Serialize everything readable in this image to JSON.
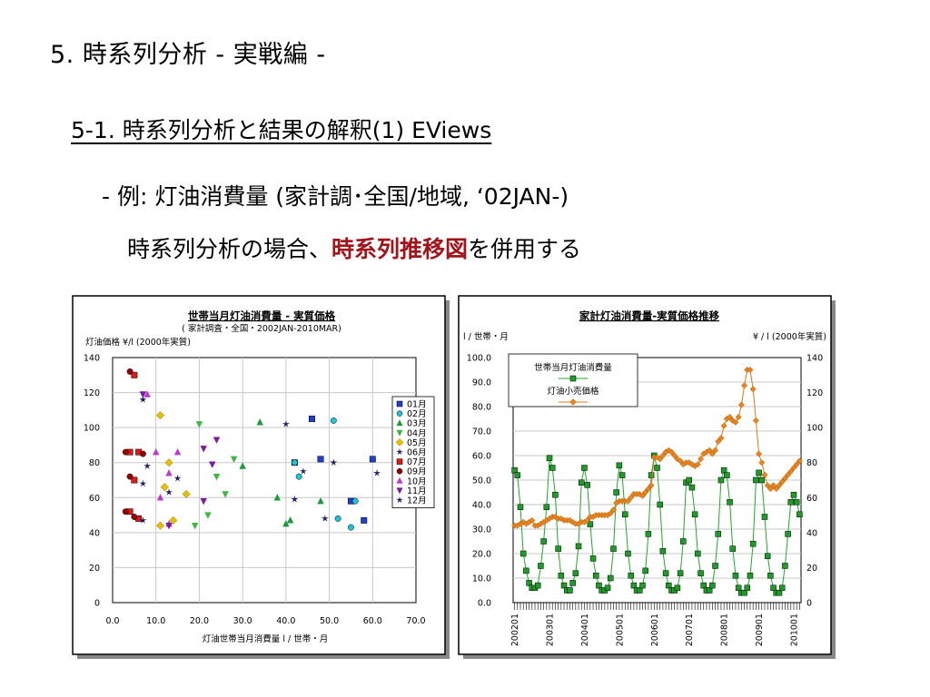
{
  "slide": {
    "title": "5. 時系列分析 - 実戦編 -",
    "subtitle": "5-1. 時系列分析と結果の解釈(1) EViews",
    "bullet1": "- 例: 灯油消費量 (家計調･全国/地域, ‘02JAN-)",
    "bullet2_prefix": "時系列分析の場合、",
    "bullet2_highlight": "時系列推移図",
    "bullet2_suffix": "を併用する"
  },
  "chart_data": [
    {
      "type": "scatter",
      "title": "世帯当月灯油消費量 - 実質価格",
      "subtitle": "( 家計調査・全国・2002JAN-2010MAR)",
      "ylabel": "灯油価格 ¥/l (2000年実質)",
      "xlabel": "灯油世帯当月消費量 l / 世帯・月",
      "xlim": [
        0,
        70
      ],
      "ylim": [
        0,
        140
      ],
      "xticks": [
        "0.0",
        "10.0",
        "20.0",
        "30.0",
        "40.0",
        "50.0",
        "60.0",
        "70.0"
      ],
      "yticks": [
        "0",
        "20",
        "40",
        "60",
        "80",
        "100",
        "120",
        "140"
      ],
      "grid": true,
      "legend_position": "right",
      "series": [
        {
          "name": "01月",
          "marker": "square",
          "color": "#1f3fd0",
          "points": [
            [
              46,
              105
            ],
            [
              55,
              58
            ],
            [
              42,
              80
            ],
            [
              48,
              82
            ],
            [
              58,
              47
            ],
            [
              60,
              82
            ]
          ]
        },
        {
          "name": "02月",
          "marker": "circle",
          "color": "#22c3d6",
          "points": [
            [
              51,
              104
            ],
            [
              56,
              58
            ],
            [
              43,
              72
            ],
            [
              52,
              48
            ],
            [
              42,
              80
            ],
            [
              55,
              43
            ]
          ]
        },
        {
          "name": "03月",
          "marker": "triangle",
          "color": "#1a9a3a",
          "points": [
            [
              34,
              103
            ],
            [
              40,
              45
            ],
            [
              30,
              78
            ],
            [
              48,
              58
            ],
            [
              38,
              60
            ],
            [
              41,
              47
            ]
          ]
        },
        {
          "name": "04月",
          "marker": "tri-down",
          "color": "#3ab83a",
          "points": [
            [
              20,
              102
            ],
            [
              28,
              82
            ],
            [
              24,
              72
            ],
            [
              22,
              50
            ],
            [
              26,
              62
            ],
            [
              19,
              44
            ]
          ]
        },
        {
          "name": "05月",
          "marker": "diamond",
          "color": "#e6c000",
          "points": [
            [
              11,
              107
            ],
            [
              13,
              80
            ],
            [
              12,
              66
            ],
            [
              14,
              47
            ],
            [
              17,
              62
            ],
            [
              11,
              44
            ]
          ]
        },
        {
          "name": "06月",
          "marker": "star",
          "color": "#222266",
          "points": [
            [
              40,
              102
            ],
            [
              44,
              75
            ],
            [
              42,
              59
            ],
            [
              49,
              48
            ],
            [
              51,
              80
            ],
            [
              61,
              74
            ]
          ]
        },
        {
          "name": "07月",
          "marker": "square",
          "color": "#e01818",
          "points": [
            [
              5,
              130
            ],
            [
              4,
              86
            ],
            [
              6,
              86
            ],
            [
              5,
              70
            ],
            [
              4,
              52
            ],
            [
              6,
              48
            ]
          ]
        },
        {
          "name": "09月",
          "marker": "circle",
          "color": "#990000",
          "points": [
            [
              4,
              132
            ],
            [
              3,
              86
            ],
            [
              7,
              85
            ],
            [
              4,
              72
            ],
            [
              3,
              52
            ],
            [
              5,
              49
            ]
          ]
        },
        {
          "name": "10月",
          "marker": "triangle",
          "color": "#b83ad0",
          "points": [
            [
              8,
              119
            ],
            [
              10,
              86
            ],
            [
              13,
              74
            ],
            [
              11,
              60
            ],
            [
              15,
              86
            ],
            [
              13,
              45
            ]
          ]
        },
        {
          "name": "11月",
          "marker": "tri-down",
          "color": "#7a1aa0",
          "points": [
            [
              7,
              119
            ],
            [
              21,
              88
            ],
            [
              24,
              93
            ],
            [
              21,
              58
            ],
            [
              23,
              79
            ],
            [
              13,
              44
            ]
          ]
        },
        {
          "name": "12月",
          "marker": "star",
          "color": "#1a2060",
          "points": [
            [
              7,
              116
            ],
            [
              8,
              78
            ],
            [
              7,
              68
            ],
            [
              13,
              63
            ],
            [
              7,
              47
            ],
            [
              15,
              71
            ]
          ]
        }
      ]
    },
    {
      "type": "line",
      "title": "家計灯油消費量-実質価格推移",
      "ylabel_left": "l / 世帯・月",
      "ylabel_right": "¥ / l (2000年実質)",
      "ylim_left": [
        0,
        100
      ],
      "ylim_right": [
        0,
        140
      ],
      "yticks_left": [
        "0.0",
        "10.0",
        "20.0",
        "30.0",
        "40.0",
        "50.0",
        "60.0",
        "70.0",
        "80.0",
        "90.0",
        "100.0"
      ],
      "yticks_right": [
        "0",
        "20",
        "40",
        "60",
        "80",
        "100",
        "120",
        "140"
      ],
      "x_tick_labels": [
        "200201",
        "200301",
        "200401",
        "200501",
        "200601",
        "200701",
        "200801",
        "200901",
        "201001"
      ],
      "grid": true,
      "legend_position": "top-left",
      "series": [
        {
          "name": "世帯当月灯油消費量",
          "axis": "left",
          "color": "#22a82a",
          "marker": "square",
          "values": [
            54,
            52,
            39,
            20,
            13,
            8,
            6,
            6,
            7,
            15,
            25,
            39,
            59,
            55,
            44,
            22,
            11,
            7,
            5,
            5,
            8,
            12,
            23,
            49,
            55,
            48,
            32,
            18,
            11,
            7,
            5,
            5,
            6,
            10,
            22,
            45,
            56,
            52,
            36,
            20,
            11,
            7,
            5,
            5,
            7,
            13,
            28,
            52,
            60,
            55,
            40,
            21,
            12,
            7,
            5,
            5,
            6,
            12,
            25,
            49,
            50,
            47,
            36,
            20,
            12,
            7,
            5,
            5,
            7,
            15,
            28,
            50,
            54,
            52,
            41,
            22,
            11,
            6,
            4,
            4,
            6,
            11,
            24,
            50,
            53,
            50,
            35,
            19,
            11,
            6,
            4,
            4,
            6,
            15,
            28,
            41,
            44,
            41,
            36
          ]
        },
        {
          "name": "灯油小売価格",
          "axis": "right",
          "color": "#e07818",
          "marker": "diamond",
          "values": [
            44,
            44,
            45,
            46,
            45,
            46,
            47,
            44,
            44,
            45,
            46,
            47,
            48,
            49,
            49,
            48,
            48,
            47,
            47,
            47,
            46,
            45,
            45,
            46,
            46,
            47,
            49,
            49,
            50,
            50,
            50,
            50,
            50,
            51,
            53,
            57,
            58,
            58,
            58,
            58,
            60,
            62,
            62,
            62,
            61,
            63,
            65,
            67,
            83,
            83,
            82,
            84,
            86,
            87,
            86,
            84,
            82,
            81,
            79,
            80,
            80,
            79,
            78,
            79,
            82,
            85,
            86,
            87,
            85,
            87,
            92,
            94,
            101,
            105,
            106,
            104,
            103,
            106,
            113,
            124,
            133,
            133,
            122,
            104,
            85,
            80,
            73,
            67,
            65,
            67,
            65,
            67,
            69,
            71,
            73,
            75,
            77,
            79,
            81
          ]
        }
      ]
    }
  ]
}
